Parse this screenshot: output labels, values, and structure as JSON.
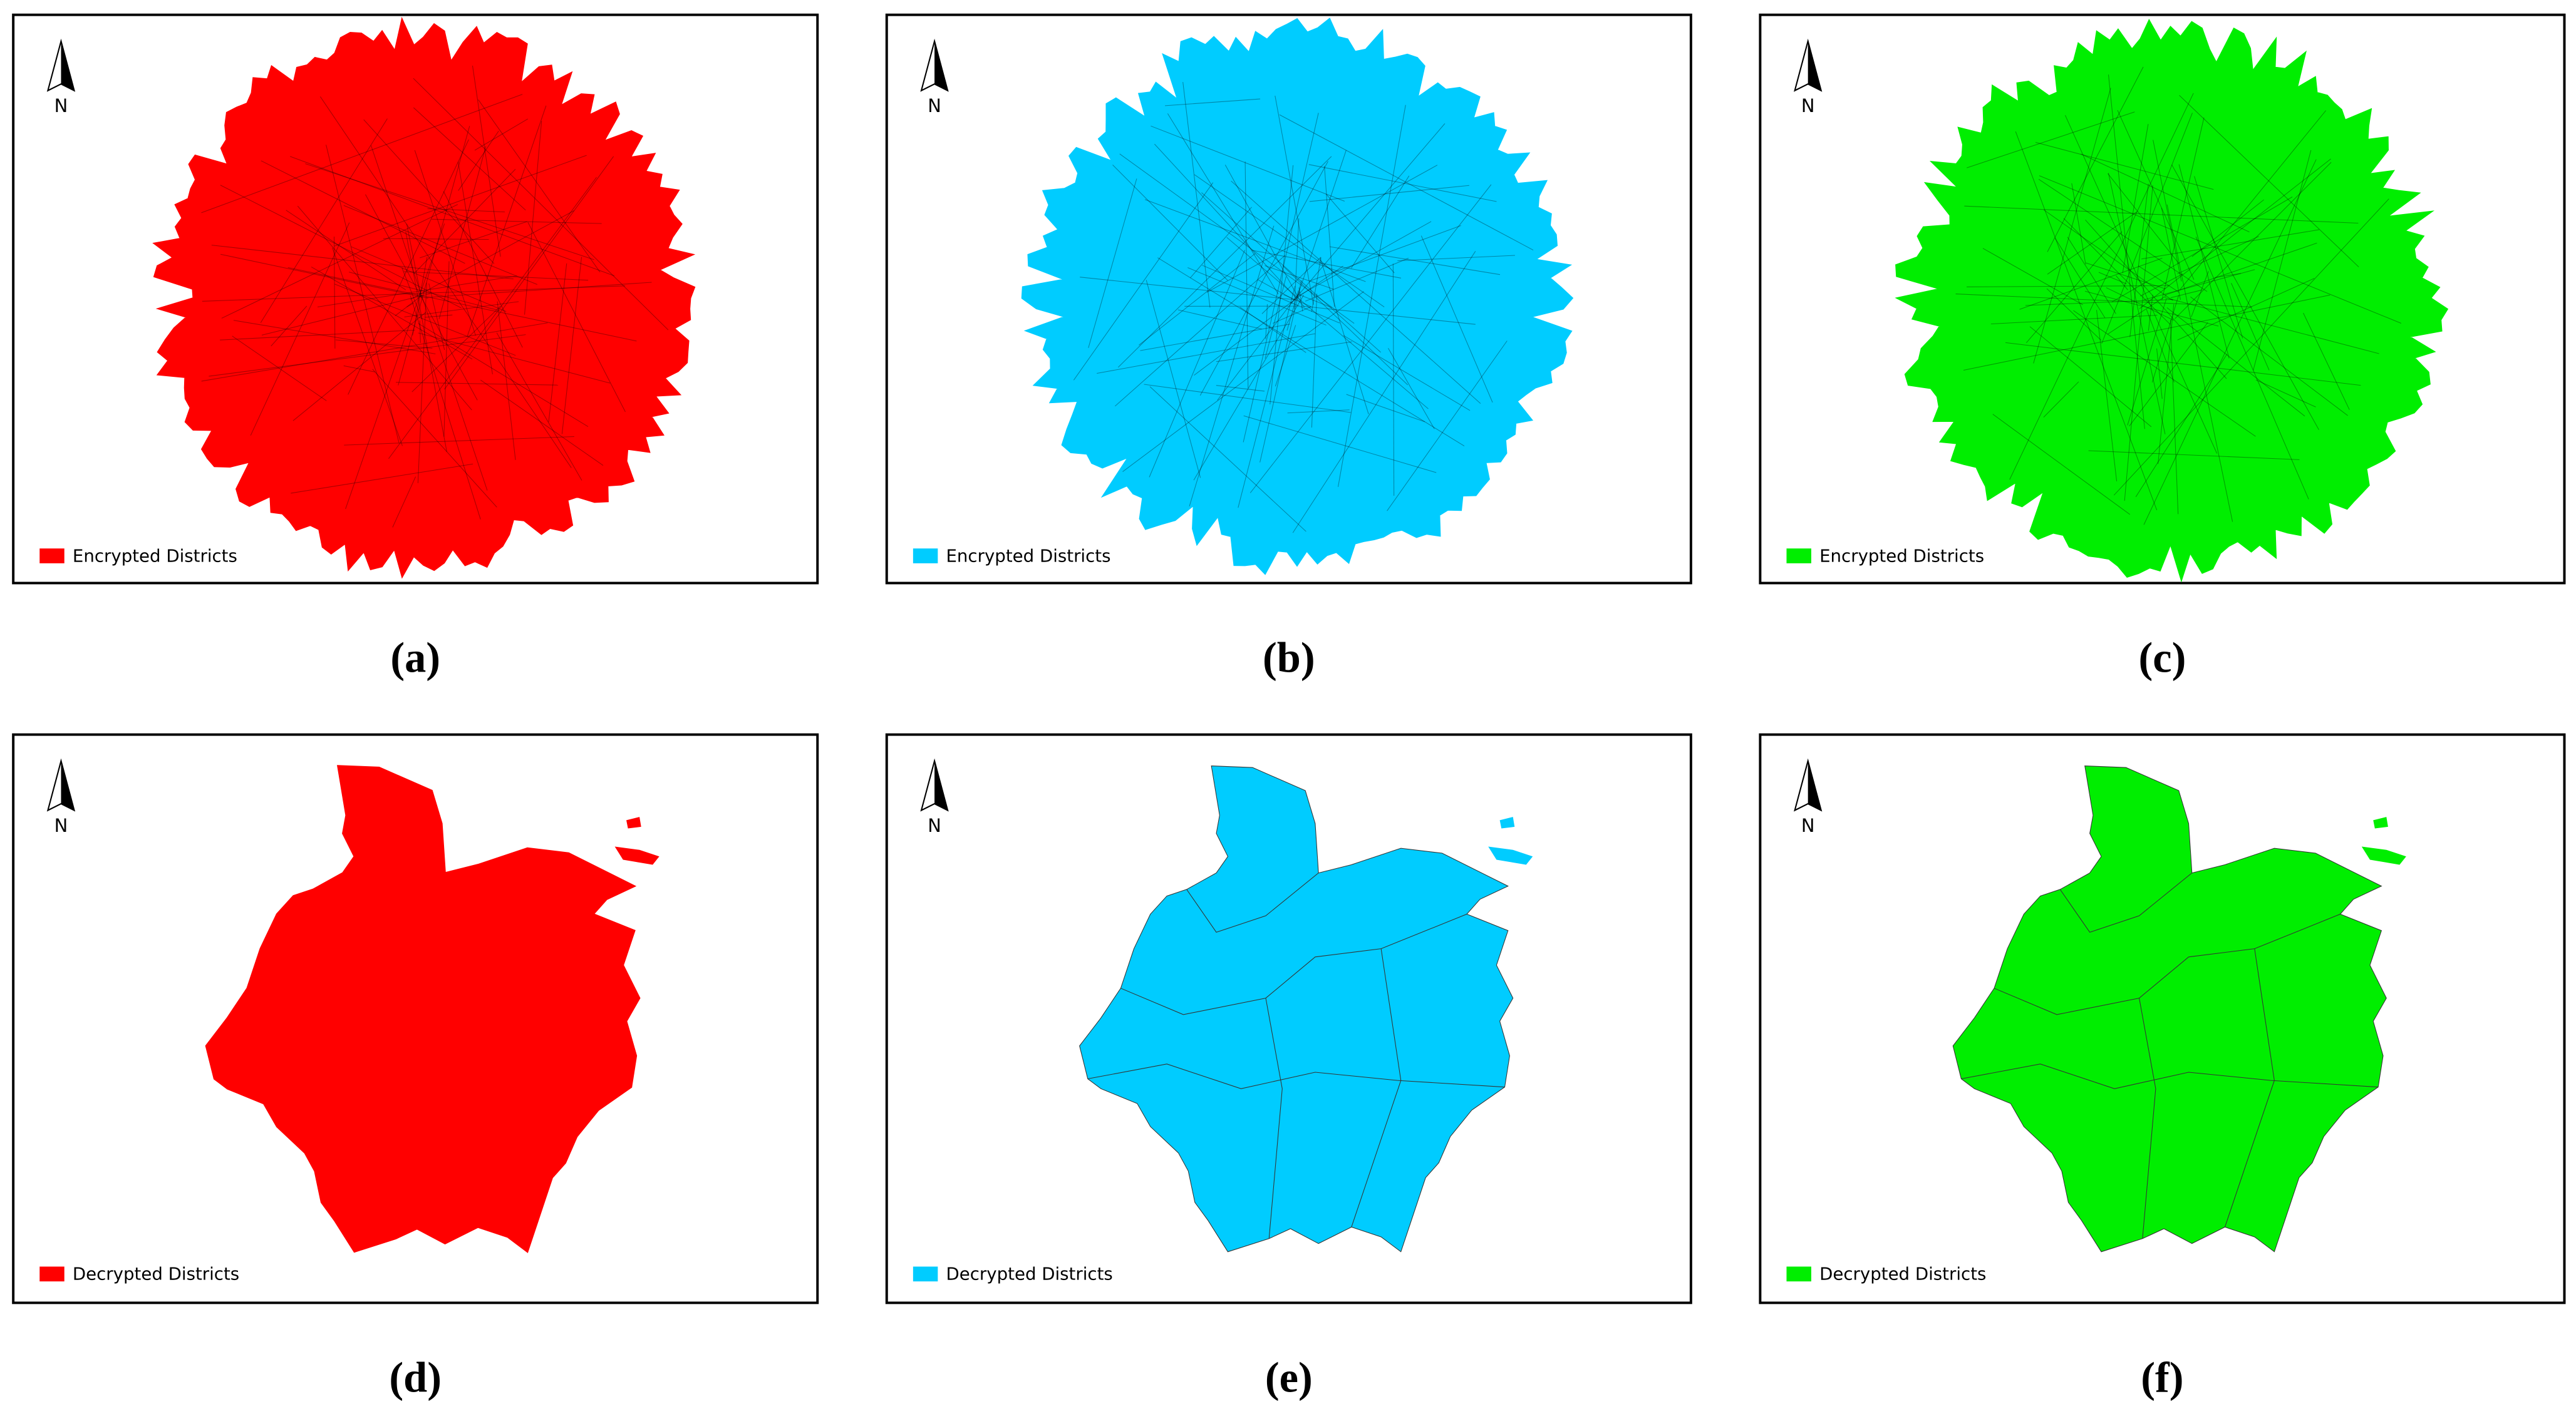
{
  "panels": [
    {
      "caption": "(a)",
      "north": "N",
      "legend": "Encrypted Districts",
      "color": "#ff0000"
    },
    {
      "caption": "(b)",
      "north": "N",
      "legend": "Encrypted Districts",
      "color": "#00ccff"
    },
    {
      "caption": "(c)",
      "north": "N",
      "legend": "Encrypted Districts",
      "color": "#00ee00"
    },
    {
      "caption": "(d)",
      "north": "N",
      "legend": "Decrypted Districts",
      "color": "#ff0000"
    },
    {
      "caption": "(e)",
      "north": "N",
      "legend": "Decrypted Districts",
      "color": "#00ccff"
    },
    {
      "caption": "(f)",
      "north": "N",
      "legend": "Decrypted Districts",
      "color": "#00ee00"
    }
  ]
}
